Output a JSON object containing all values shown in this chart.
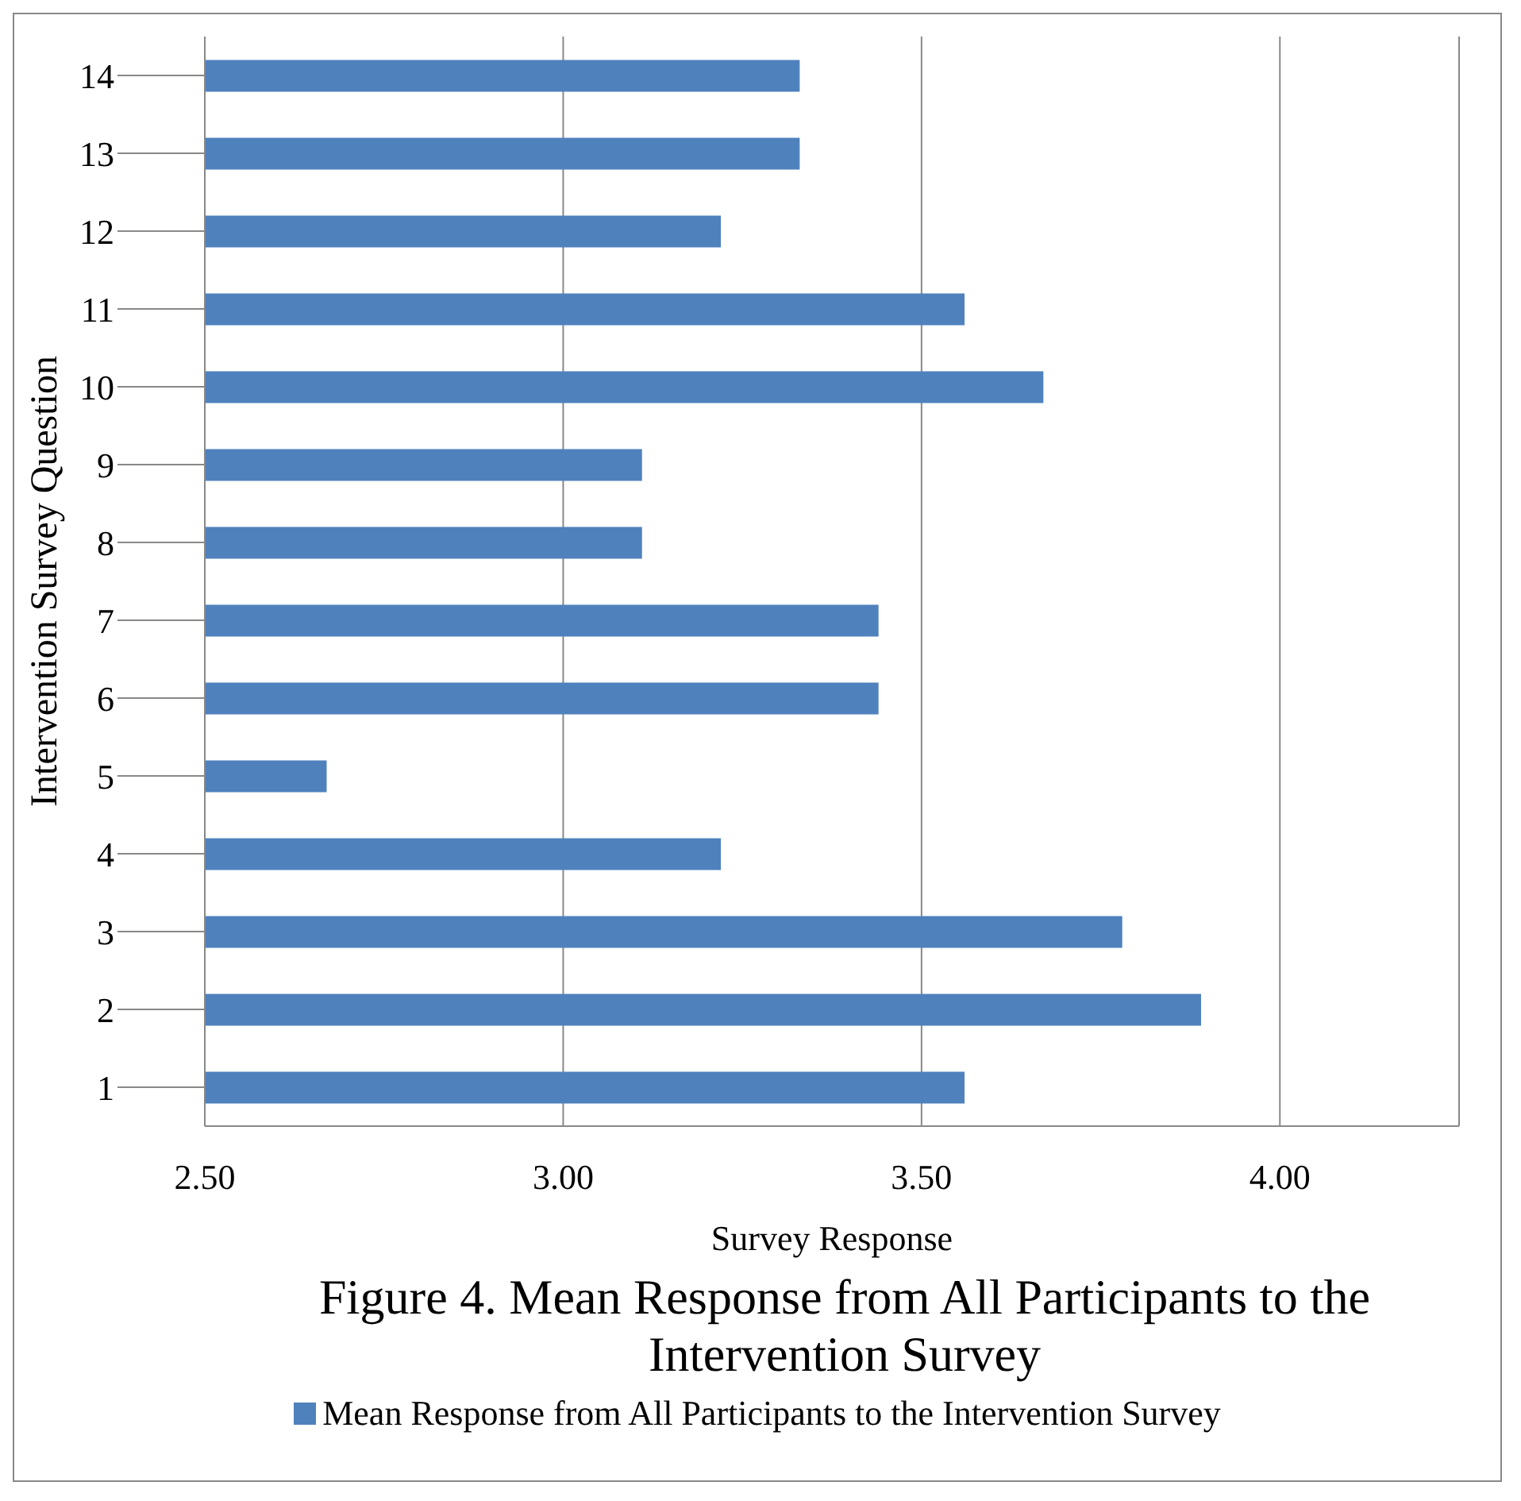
{
  "chart_data": {
    "type": "bar",
    "orientation": "horizontal",
    "title": "Figure 4. Mean Response from All Participants to the Intervention Survey",
    "xlabel": "Survey Response",
    "ylabel": "Intervention Survey Question",
    "categories": [
      "14",
      "13",
      "12",
      "11",
      "10",
      "9",
      "8",
      "7",
      "6",
      "5",
      "4",
      "3",
      "2",
      "1"
    ],
    "series": [
      {
        "name": "Mean Response from All Participants to the Intervention Survey",
        "color": "#4f81bd",
        "values": [
          3.33,
          3.33,
          3.22,
          3.56,
          3.67,
          3.11,
          3.11,
          3.44,
          3.44,
          2.67,
          3.22,
          3.78,
          3.89,
          3.56
        ]
      }
    ],
    "xlim": [
      2.5,
      4.25
    ],
    "xticks": [
      {
        "value": 2.5,
        "label": "2.50"
      },
      {
        "value": 3,
        "label": "3.00"
      },
      {
        "value": 3.5,
        "label": "3.50"
      },
      {
        "value": 4,
        "label": "4.00"
      }
    ],
    "grid": "x",
    "legend": "bottom"
  }
}
